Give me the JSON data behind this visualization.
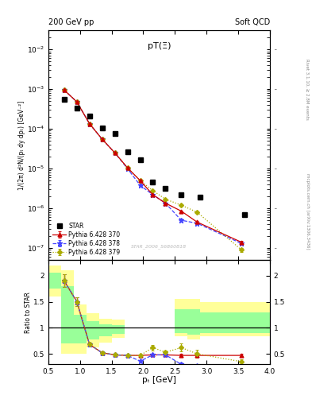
{
  "title_top": "200 GeV pp",
  "title_top_right": "Soft QCD",
  "plot_title": "pT(Ξ)",
  "ylabel_main": "1/(2π) d²N/(pₜ dy dpₜ) [GeV⁻²]",
  "ylabel_ratio": "Ratio to STAR",
  "xlabel": "pₜ [GeV]",
  "watermark": "STAR_2006_S6860818",
  "right_label_top": "Rivet 3.1.10, ≥ 2.8M events",
  "right_label_bottom": "mcplots.cern.ch [arXiv:1306.3436]",
  "star_x": [
    0.75,
    0.95,
    1.15,
    1.35,
    1.55,
    1.75,
    1.95,
    2.15,
    2.35,
    2.6,
    2.9,
    3.6
  ],
  "star_y": [
    0.00055,
    0.00034,
    0.00021,
    0.000105,
    7.5e-05,
    2.7e-05,
    1.7e-05,
    4.5e-06,
    3.2e-06,
    2.2e-06,
    1.9e-06,
    7e-07
  ],
  "py370_x": [
    0.75,
    0.95,
    1.15,
    1.35,
    1.55,
    1.75,
    1.95,
    2.15,
    2.35,
    2.6,
    2.85,
    3.55
  ],
  "py370_y": [
    0.00095,
    0.00048,
    0.000135,
    5.5e-05,
    2.5e-05,
    1.05e-05,
    5e-06,
    2.2e-06,
    1.35e-06,
    8.5e-07,
    4.5e-07,
    1.4e-07
  ],
  "py370_yerr": [
    6e-05,
    3e-05,
    5e-06,
    2e-06,
    8e-07,
    4e-07,
    1.5e-07,
    8e-08,
    5e-08,
    4e-08,
    2e-08,
    1e-08
  ],
  "py378_x": [
    0.75,
    0.95,
    1.15,
    1.35,
    1.55,
    1.75,
    1.95,
    2.15,
    2.35,
    2.6,
    2.85,
    3.55
  ],
  "py378_y": [
    0.00095,
    0.00048,
    0.000135,
    5.5e-05,
    2.5e-05,
    1e-05,
    3.8e-06,
    2.2e-06,
    1.35e-06,
    5e-07,
    4.2e-07,
    1.3e-07
  ],
  "py378_yerr": [
    6e-05,
    3e-05,
    5e-06,
    2e-06,
    8e-07,
    4e-07,
    1.5e-07,
    8e-08,
    5e-08,
    4e-08,
    2e-08,
    1e-08
  ],
  "py379_x": [
    0.75,
    0.95,
    1.15,
    1.35,
    1.55,
    1.75,
    1.95,
    2.15,
    2.35,
    2.6,
    2.85,
    3.55
  ],
  "py379_y": [
    0.00095,
    0.00048,
    0.000135,
    5.5e-05,
    2.5e-05,
    1.05e-05,
    5e-06,
    2.8e-06,
    1.7e-06,
    1.2e-06,
    8e-07,
    9e-08
  ],
  "py379_yerr": [
    6e-05,
    3e-05,
    5e-06,
    2e-06,
    8e-07,
    4e-07,
    1.5e-07,
    1e-07,
    7e-08,
    6e-08,
    4e-08,
    1e-08
  ],
  "ratio370_x": [
    0.75,
    0.95,
    1.15,
    1.35,
    1.55,
    1.75,
    1.95,
    2.15,
    2.35,
    2.6,
    2.85,
    3.55
  ],
  "ratio370_y": [
    1.9,
    1.5,
    0.68,
    0.52,
    0.48,
    0.47,
    0.47,
    0.48,
    0.48,
    0.47,
    0.47,
    0.47
  ],
  "ratio370_yerr": [
    0.12,
    0.08,
    0.04,
    0.03,
    0.02,
    0.02,
    0.02,
    0.02,
    0.02,
    0.03,
    0.03,
    0.03
  ],
  "ratio378_x": [
    0.75,
    0.95,
    1.15,
    1.35,
    1.55,
    1.75,
    1.95,
    2.15,
    2.35,
    2.6,
    2.85,
    3.55
  ],
  "ratio378_y": [
    1.9,
    1.5,
    0.68,
    0.52,
    0.48,
    0.47,
    0.36,
    0.48,
    0.48,
    0.3,
    0.28,
    0.28
  ],
  "ratio378_yerr": [
    0.12,
    0.08,
    0.04,
    0.03,
    0.02,
    0.02,
    0.02,
    0.02,
    0.02,
    0.03,
    0.03,
    0.03
  ],
  "ratio379_x": [
    0.75,
    0.95,
    1.15,
    1.35,
    1.55,
    1.75,
    1.95,
    2.15,
    2.35,
    2.6,
    2.85,
    3.55
  ],
  "ratio379_y": [
    1.9,
    1.5,
    0.68,
    0.52,
    0.48,
    0.47,
    0.47,
    0.62,
    0.53,
    0.62,
    0.5,
    0.35
  ],
  "ratio379_yerr": [
    0.12,
    0.08,
    0.04,
    0.03,
    0.02,
    0.02,
    0.02,
    0.05,
    0.04,
    0.08,
    0.08,
    0.04
  ],
  "color_star": "#000000",
  "color_370": "#cc0000",
  "color_378": "#4444ff",
  "color_379": "#aaaa00",
  "color_yellow": "#ffff99",
  "color_green": "#99ff99",
  "xlim": [
    0.5,
    4.0
  ],
  "ylim_main": [
    5e-08,
    0.03
  ],
  "ylim_ratio": [
    0.3,
    2.3
  ]
}
